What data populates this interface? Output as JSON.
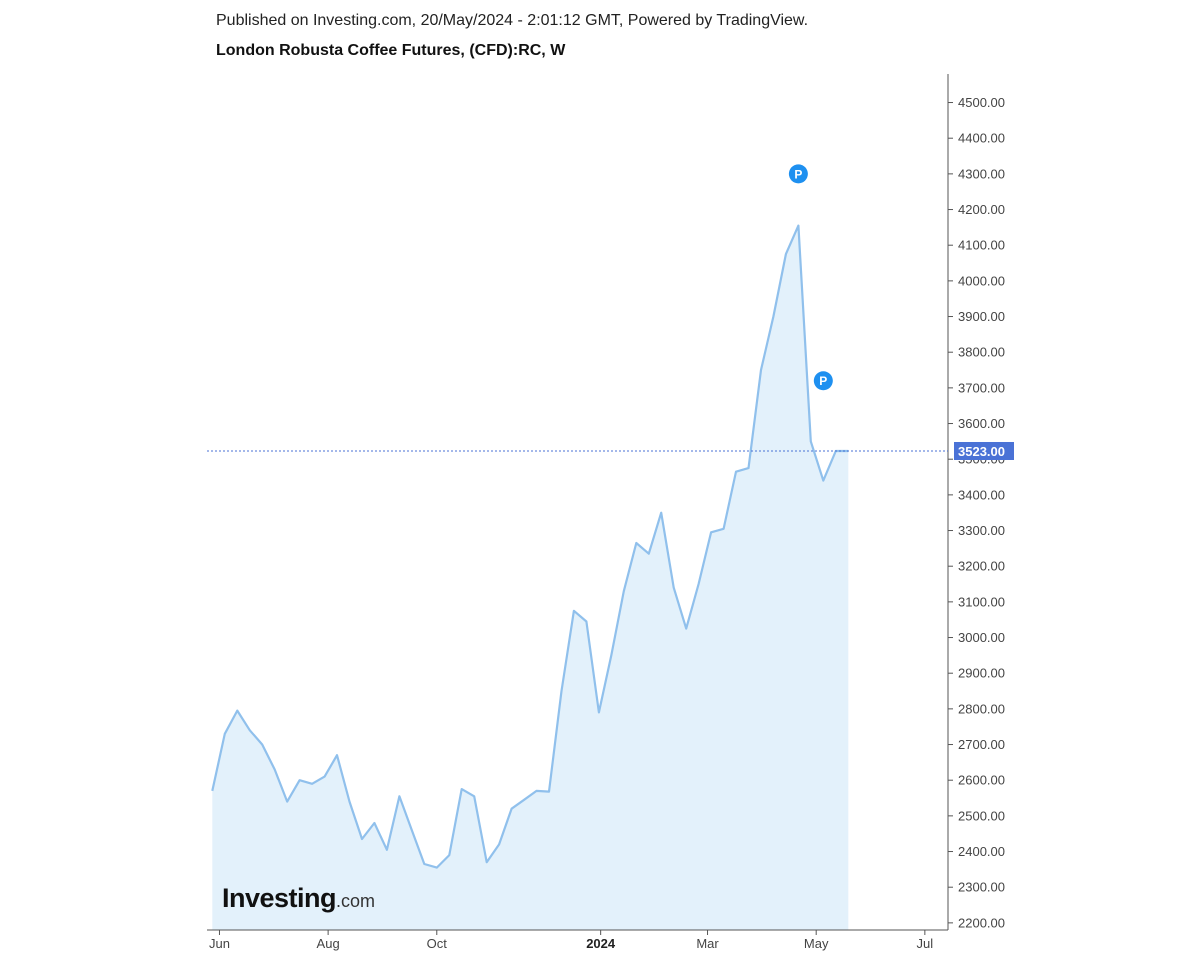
{
  "header": {
    "published": "Published on Investing.com, 20/May/2024 - 2:01:12 GMT, Powered by TradingView.",
    "title": "London Robusta Coffee Futures, (CFD):RC, W"
  },
  "logo": {
    "brand": "Investing",
    "suffix": ".com"
  },
  "colors": {
    "line": "#90c0ec",
    "fill": "#e3f1fb",
    "last_price_bg": "#4a72d6",
    "marker": "#1e90f0",
    "axis": "#555555"
  },
  "chart_data": {
    "type": "area",
    "title": "London Robusta Coffee Futures, (CFD):RC, W",
    "xlabel": "",
    "ylabel": "",
    "x_tick_labels": [
      {
        "label": "Jun",
        "date": "2023-06-01"
      },
      {
        "label": "Aug",
        "date": "2023-08-01"
      },
      {
        "label": "Oct",
        "date": "2023-10-01"
      },
      {
        "label": "2024",
        "date": "2024-01-01",
        "bold": true
      },
      {
        "label": "Mar",
        "date": "2024-03-01"
      },
      {
        "label": "May",
        "date": "2024-05-01"
      },
      {
        "label": "Jul",
        "date": "2024-07-01"
      }
    ],
    "xlim": [
      "2023-05-25",
      "2024-07-14"
    ],
    "ylim": [
      2180,
      4580
    ],
    "y_ticks": [
      2200,
      2300,
      2400,
      2500,
      2600,
      2700,
      2800,
      2900,
      3000,
      3100,
      3200,
      3300,
      3400,
      3500,
      3600,
      3700,
      3800,
      3900,
      4000,
      4100,
      4200,
      4300,
      4400,
      4500
    ],
    "y_tick_labels": [
      "2200.00",
      "2300.00",
      "2400.00",
      "2500.00",
      "2600.00",
      "2700.00",
      "2800.00",
      "2900.00",
      "3000.00",
      "3100.00",
      "3200.00",
      "3300.00",
      "3400.00",
      "3500.00",
      "3600.00",
      "3700.00",
      "3800.00",
      "3900.00",
      "4000.00",
      "4100.00",
      "4200.00",
      "4300.00",
      "4400.00",
      "4500.00"
    ],
    "last_price": 3523,
    "last_price_label": "3523.00",
    "grid": false,
    "series": [
      {
        "name": "",
        "x": [
          "2023-05-28",
          "2023-06-04",
          "2023-06-11",
          "2023-06-18",
          "2023-06-25",
          "2023-07-02",
          "2023-07-09",
          "2023-07-16",
          "2023-07-23",
          "2023-07-30",
          "2023-08-06",
          "2023-08-13",
          "2023-08-20",
          "2023-08-27",
          "2023-09-03",
          "2023-09-10",
          "2023-09-17",
          "2023-09-24",
          "2023-10-01",
          "2023-10-08",
          "2023-10-15",
          "2023-10-22",
          "2023-10-29",
          "2023-11-05",
          "2023-11-12",
          "2023-11-19",
          "2023-11-26",
          "2023-12-03",
          "2023-12-10",
          "2023-12-17",
          "2023-12-24",
          "2023-12-31",
          "2024-01-07",
          "2024-01-14",
          "2024-01-21",
          "2024-01-28",
          "2024-02-04",
          "2024-02-11",
          "2024-02-18",
          "2024-02-25",
          "2024-03-03",
          "2024-03-10",
          "2024-03-17",
          "2024-03-24",
          "2024-03-31",
          "2024-04-07",
          "2024-04-14",
          "2024-04-21",
          "2024-04-28",
          "2024-05-05",
          "2024-05-12",
          "2024-05-19"
        ],
        "values": [
          2570,
          2730,
          2795,
          2740,
          2700,
          2630,
          2540,
          2600,
          2590,
          2610,
          2670,
          2540,
          2435,
          2480,
          2405,
          2555,
          2460,
          2365,
          2355,
          2390,
          2575,
          2555,
          2370,
          2420,
          2520,
          2545,
          2570,
          2568,
          2850,
          3075,
          3045,
          2790,
          2950,
          3130,
          3265,
          3235,
          3350,
          3140,
          3025,
          3150,
          3295,
          3305,
          3465,
          3475,
          3750,
          3900,
          4075,
          4155,
          3550,
          3440,
          3523,
          3523
        ]
      }
    ],
    "annotations": [
      {
        "label": "P",
        "date": "2024-04-21",
        "value": 4300
      },
      {
        "label": "P",
        "date": "2024-05-05",
        "value": 3720
      }
    ]
  }
}
